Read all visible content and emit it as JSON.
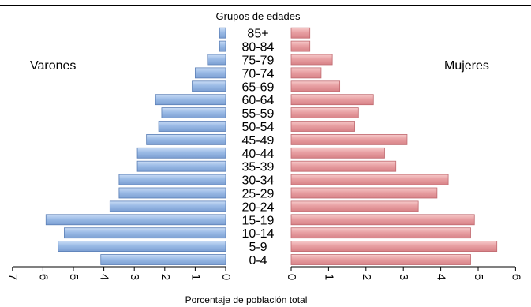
{
  "chart_data": {
    "type": "bar",
    "orientation": "horizontal",
    "title": "Grupos de edades",
    "xlabel": "Porcentaje de población total",
    "categories": [
      "0-4",
      "5-9",
      "10-14",
      "15-19",
      "20-24",
      "25-29",
      "30-34",
      "35-39",
      "40-44",
      "45-49",
      "50-54",
      "55-59",
      "60-64",
      "65-69",
      "70-74",
      "75-79",
      "80-84",
      "85+"
    ],
    "series": [
      {
        "name": "Varones",
        "color": "#9bbbe6",
        "values": [
          4.1,
          5.5,
          5.3,
          5.9,
          3.8,
          3.5,
          3.5,
          2.9,
          2.9,
          2.6,
          2.2,
          2.1,
          2.3,
          1.1,
          1.0,
          0.6,
          0.2,
          0.2
        ],
        "xlim": [
          7,
          0
        ],
        "ticks": [
          "7",
          "6",
          "5",
          "4",
          "3",
          "2",
          "1",
          "0"
        ]
      },
      {
        "name": "Mujeres",
        "color": "#e8a0a3",
        "values": [
          4.8,
          5.5,
          4.8,
          4.9,
          3.4,
          3.9,
          4.2,
          2.8,
          2.5,
          3.1,
          1.7,
          1.8,
          2.2,
          1.3,
          0.8,
          1.1,
          0.5,
          0.5
        ],
        "xlim": [
          0,
          6
        ],
        "ticks": [
          "0",
          "1",
          "2",
          "3",
          "4",
          "5",
          "6"
        ]
      }
    ],
    "grid": false,
    "legend": "none"
  }
}
